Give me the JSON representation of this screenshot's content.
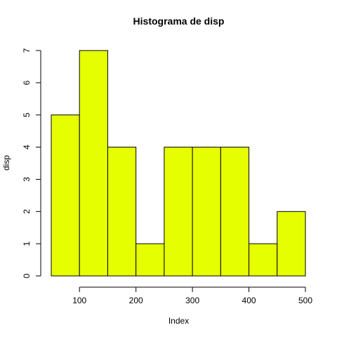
{
  "chart_data": {
    "type": "bar",
    "title": "Histograma de  disp",
    "xlabel": "Index",
    "ylabel": "disp",
    "bins": [
      {
        "start": 50,
        "end": 100,
        "count": 5
      },
      {
        "start": 100,
        "end": 150,
        "count": 7
      },
      {
        "start": 150,
        "end": 200,
        "count": 4
      },
      {
        "start": 200,
        "end": 250,
        "count": 1
      },
      {
        "start": 250,
        "end": 300,
        "count": 4
      },
      {
        "start": 300,
        "end": 350,
        "count": 4
      },
      {
        "start": 350,
        "end": 400,
        "count": 4
      },
      {
        "start": 400,
        "end": 450,
        "count": 1
      },
      {
        "start": 450,
        "end": 500,
        "count": 2
      }
    ],
    "xlim": [
      50,
      500
    ],
    "ylim": [
      0,
      7
    ],
    "x_ticks": [
      100,
      200,
      300,
      400,
      500
    ],
    "y_ticks": [
      0,
      1,
      2,
      3,
      4,
      5,
      6,
      7
    ],
    "bar_color": "#E6FF00",
    "grid": false,
    "legend": "none"
  }
}
